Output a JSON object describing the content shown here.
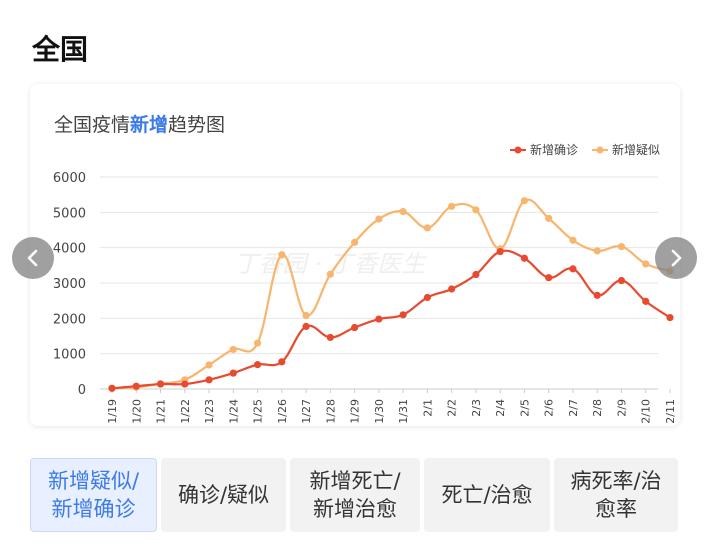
{
  "section": {
    "title": "全国"
  },
  "chart_data": {
    "type": "line",
    "title_parts": [
      "全国疫情",
      "新增",
      "趋势图"
    ],
    "watermark": "丁香园 · 丁香医生",
    "categories": [
      "1/19",
      "1/20",
      "1/21",
      "1/22",
      "1/23",
      "1/24",
      "1/25",
      "1/26",
      "1/27",
      "1/28",
      "1/29",
      "1/30",
      "1/31",
      "2/1",
      "2/2",
      "2/3",
      "2/4",
      "2/5",
      "2/6",
      "2/7",
      "2/8",
      "2/9",
      "2/10",
      "2/11"
    ],
    "series": [
      {
        "name": "新增确诊",
        "color": "#e84a2f",
        "values": [
          20,
          80,
          140,
          140,
          260,
          450,
          690,
          770,
          1770,
          1460,
          1740,
          1980,
          2100,
          2590,
          2830,
          3240,
          3890,
          3700,
          3150,
          3400,
          2650,
          3070,
          2480,
          2020
        ]
      },
      {
        "name": "新增疑似",
        "color": "#f7b56e",
        "values": [
          20,
          50,
          150,
          260,
          680,
          1120,
          1300,
          3800,
          2080,
          3250,
          4150,
          4810,
          5020,
          4560,
          5170,
          5070,
          3970,
          5330,
          4830,
          4210,
          3910,
          4030,
          3540,
          3340
        ]
      }
    ],
    "yticks": [
      0,
      1000,
      2000,
      3000,
      4000,
      5000,
      6000
    ],
    "ylim": [
      0,
      6000
    ],
    "legend_position": "top-right",
    "grid": true
  },
  "tabs": [
    {
      "lines": [
        "新增疑似/",
        "新增确诊"
      ],
      "active": true
    },
    {
      "lines": [
        "确诊/疑似"
      ],
      "active": false
    },
    {
      "lines": [
        "新增死亡/",
        "新增治愈"
      ],
      "active": false
    },
    {
      "lines": [
        "死亡/治愈"
      ],
      "active": false
    },
    {
      "lines": [
        "病死率/治",
        "愈率"
      ],
      "active": false
    }
  ]
}
